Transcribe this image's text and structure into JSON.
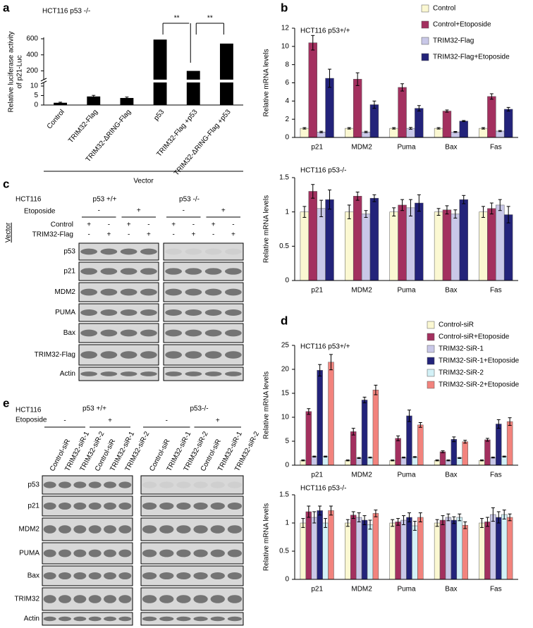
{
  "panel_labels": [
    "a",
    "b",
    "c",
    "d",
    "e"
  ],
  "chart_data": [
    {
      "type": "bar",
      "title": "HCT116 p53 -/-",
      "ylabel": [
        "Relative luciferase activity",
        "of p21-Luc"
      ],
      "categories": [
        "Control",
        "TRIM32-Flag",
        "TRIM32-ΔRING-Flag",
        "p53",
        "TRIM32-Flag +p53",
        "TRIM32-ΔRING-Flag +p53"
      ],
      "values": [
        1.2,
        4.5,
        3.7,
        590,
        200,
        540
      ],
      "errors": [
        0.3,
        0.6,
        0.5,
        0,
        0,
        0
      ],
      "color": "#000000",
      "ylim": [
        0,
        600
      ],
      "ybreak": [
        11.5,
        100
      ],
      "yticks": [
        0,
        5,
        10,
        200,
        400,
        600
      ],
      "annotations": [
        "**",
        "**"
      ],
      "group_label": "Vector"
    },
    {
      "type": "bar",
      "title": "HCT116 p53+/+",
      "ylabel": [
        "Relative mRNA levels"
      ],
      "legend": true,
      "categories": [
        "p21",
        "MDM2",
        "Puma",
        "Bax",
        "Fas"
      ],
      "series": [
        {
          "name": "Control",
          "color": "#fbf8d2",
          "values": [
            1,
            1,
            1,
            1,
            1
          ],
          "errors": [
            0.08,
            0.08,
            0.08,
            0.08,
            0.08
          ]
        },
        {
          "name": "Control+Etoposide",
          "color": "#a3305f",
          "values": [
            10.4,
            6.4,
            5.5,
            2.9,
            4.5
          ],
          "errors": [
            0.8,
            0.7,
            0.4,
            0.12,
            0.3
          ]
        },
        {
          "name": "TRIM32-Flag",
          "color": "#c9c8e8",
          "values": [
            0.6,
            0.6,
            1.0,
            0.6,
            0.7
          ],
          "errors": [
            0.08,
            0.08,
            0.1,
            0.06,
            0.06
          ]
        },
        {
          "name": "TRIM32-Flag+Etoposide",
          "color": "#23237a",
          "values": [
            6.5,
            3.6,
            3.2,
            1.8,
            3.1
          ],
          "errors": [
            1.0,
            0.4,
            0.3,
            0.06,
            0.2
          ]
        }
      ],
      "ylim": [
        0,
        12
      ],
      "yticks": [
        0,
        2,
        4,
        6,
        8,
        10,
        12
      ]
    },
    {
      "type": "bar",
      "title": "HCT116 p53-/-",
      "ylabel": [
        "Relative mRNA levels"
      ],
      "legend": false,
      "categories": [
        "p21",
        "MDM2",
        "Puma",
        "Bax",
        "Fas"
      ],
      "series": [
        {
          "color": "#fbf8d2",
          "values": [
            1,
            1,
            1,
            1,
            1
          ],
          "errors": [
            0.08,
            0.1,
            0.06,
            0.05,
            0.08
          ]
        },
        {
          "color": "#a3305f",
          "values": [
            1.3,
            1.23,
            1.1,
            1.03,
            1.05
          ],
          "errors": [
            0.1,
            0.06,
            0.08,
            0.06,
            0.08
          ]
        },
        {
          "color": "#c9c8e8",
          "values": [
            1.05,
            0.97,
            1.06,
            0.97,
            1.1
          ],
          "errors": [
            0.12,
            0.05,
            0.12,
            0.06,
            0.08
          ]
        },
        {
          "color": "#23237a",
          "values": [
            1.18,
            1.2,
            1.13,
            1.18,
            0.96
          ],
          "errors": [
            0.14,
            0.05,
            0.12,
            0.06,
            0.12
          ]
        }
      ],
      "ylim": [
        0,
        1.5
      ],
      "yticks": [
        0,
        0.5,
        1,
        1.5
      ]
    },
    {
      "type": "bar",
      "title": "HCT116 p53+/+",
      "ylabel": [
        "Relative mRNA levels"
      ],
      "legend": true,
      "categories": [
        "p21",
        "MDM2",
        "Puma",
        "Bax",
        "Fas"
      ],
      "series": [
        {
          "name": "Control-siR",
          "color": "#fbf8d2",
          "values": [
            1,
            1,
            1,
            1,
            1
          ],
          "errors": [
            0.1,
            0.1,
            0.1,
            0.1,
            0.1
          ]
        },
        {
          "name": "Control-siR+Etoposide",
          "color": "#a3305f",
          "values": [
            11.2,
            7,
            5.6,
            2.8,
            5.3
          ],
          "errors": [
            0.6,
            0.7,
            0.5,
            0.2,
            0.3
          ]
        },
        {
          "name": "TRIM32-SiR-1",
          "color": "#c9c8e8",
          "values": [
            1.8,
            1.5,
            1.6,
            1.0,
            1.6
          ],
          "errors": [
            0.1,
            0.1,
            0.1,
            0.1,
            0.1
          ]
        },
        {
          "name": "TRIM32-SiR-1+Etoposide",
          "color": "#23237a",
          "values": [
            19.8,
            13.6,
            10.3,
            5.4,
            8.6
          ],
          "errors": [
            1.2,
            0.6,
            1.2,
            0.5,
            0.9
          ]
        },
        {
          "name": "TRIM32-SiR-2",
          "color": "#d3f1f7",
          "values": [
            1.8,
            1.6,
            1.7,
            1.5,
            1.8
          ],
          "errors": [
            0.1,
            0.1,
            0.1,
            0.1,
            0.1
          ]
        },
        {
          "name": "TRIM32-SiR-2+Etoposide",
          "color": "#f2837d",
          "values": [
            21.5,
            15.7,
            8.4,
            4.9,
            9.1
          ],
          "errors": [
            1.6,
            1.0,
            0.5,
            0.3,
            0.8
          ]
        }
      ],
      "ylim": [
        0,
        25
      ],
      "yticks": [
        0,
        5,
        10,
        15,
        20,
        25
      ]
    },
    {
      "type": "bar",
      "title": "HCT116 p53-/-",
      "ylabel": [
        "Relative mRNA levels"
      ],
      "legend": false,
      "categories": [
        "p21",
        "MDM2",
        "Puma",
        "Bax",
        "Fas"
      ],
      "series": [
        {
          "color": "#fbf8d2",
          "values": [
            1,
            1,
            1,
            1,
            1
          ],
          "errors": [
            0.08,
            0.06,
            0.06,
            0.06,
            0.08
          ]
        },
        {
          "color": "#a3305f",
          "values": [
            1.2,
            1.14,
            1.02,
            1.05,
            1.02
          ],
          "errors": [
            0.1,
            0.06,
            0.06,
            0.08,
            0.08
          ]
        },
        {
          "color": "#c9c8e8",
          "values": [
            1.1,
            1.1,
            1.05,
            1.1,
            1.15
          ],
          "errors": [
            0.1,
            0.08,
            0.08,
            0.06,
            0.12
          ]
        },
        {
          "color": "#23237a",
          "values": [
            1.22,
            1.05,
            1.1,
            1.05,
            1.1
          ],
          "errors": [
            0.08,
            0.08,
            0.08,
            0.06,
            0.1
          ]
        },
        {
          "color": "#d3f1f7",
          "values": [
            1.0,
            0.97,
            0.95,
            1.1,
            1.15
          ],
          "errors": [
            0.08,
            0.08,
            0.08,
            0.06,
            0.08
          ]
        },
        {
          "color": "#f2837d",
          "values": [
            1.22,
            1.17,
            1.1,
            0.96,
            1.1
          ],
          "errors": [
            0.08,
            0.06,
            0.08,
            0.06,
            0.06
          ]
        }
      ],
      "ylim": [
        0,
        1.5
      ],
      "yticks": [
        0,
        0.5,
        1,
        1.5
      ]
    }
  ],
  "blots": {
    "c": {
      "cell_line": "HCT116",
      "genotypes": [
        "p53 +/+",
        "p53 -/-"
      ],
      "treatment_label": "Etoposide",
      "treatment": [
        "-",
        "+",
        "-",
        "+"
      ],
      "conditions": [
        {
          "label": "Control",
          "signs": [
            "+",
            "-",
            "+",
            "-",
            "+",
            "-",
            "+",
            "-"
          ]
        },
        {
          "label": "TRIM32-Flag",
          "signs": [
            "-",
            "+",
            "-",
            "+",
            "-",
            "+",
            "-",
            "+"
          ]
        }
      ],
      "vector_label": "Vector",
      "rows": [
        "p53",
        "p21",
        "MDM2",
        "PUMA",
        "Bax",
        "TRIM32-Flag",
        "Actin"
      ]
    },
    "e": {
      "cell_line": "HCT116",
      "treatment_label": "Etoposide",
      "genotypes": [
        "p53 +/+",
        "p53-/-"
      ],
      "treatment": [
        "-",
        "+",
        "-",
        "+"
      ],
      "lanes": [
        "Control-siR",
        "TRIM32-siR-1",
        "TRIM32-siR-2",
        "Control-siR",
        "TRIM32-siR-1",
        "TRIM32-siR-2",
        "Control-siR",
        "TRIM32-siR-1",
        "TRIM32-siR-2",
        "Control-siR",
        "TRIM32-siR-1",
        "TRIM32-siR-2"
      ],
      "rows": [
        "p53",
        "p21",
        "MDM2",
        "PUMA",
        "Bax",
        "TRIM32",
        "Actin"
      ]
    }
  }
}
